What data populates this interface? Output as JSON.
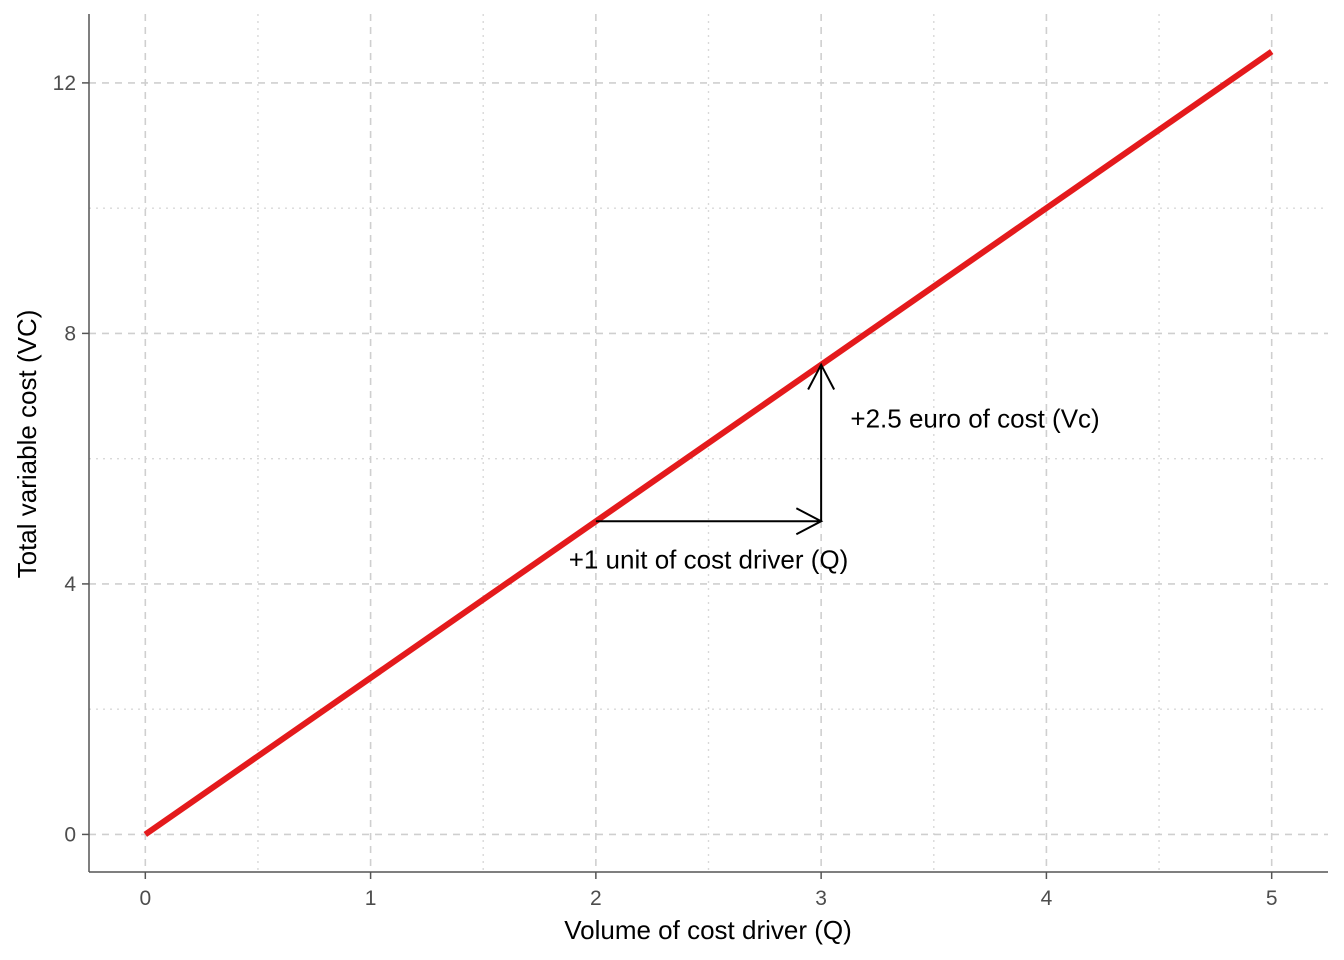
{
  "chart_data": {
    "type": "line",
    "title": "",
    "xlabel": "Volume of cost driver (Q)",
    "ylabel": "Total variable cost (VC)",
    "xlim": [
      -0.25,
      5.25
    ],
    "ylim": [
      -0.6,
      13.1
    ],
    "x_ticks": [
      0,
      1,
      2,
      3,
      4,
      5
    ],
    "y_ticks": [
      0,
      4,
      8,
      12
    ],
    "x_tick_labels": [
      "0",
      "1",
      "2",
      "3",
      "4",
      "5"
    ],
    "y_tick_labels": [
      "0",
      "4",
      "8",
      "12"
    ],
    "x_minor_ticks": [
      0.5,
      1.5,
      2.5,
      3.5,
      4.5
    ],
    "y_minor_ticks": [
      2,
      6,
      10
    ],
    "grid": true,
    "legend": "none",
    "series": [
      {
        "color": "#e41a1c",
        "points": [
          {
            "x": 0,
            "y": 0
          },
          {
            "x": 5,
            "y": 12.5
          }
        ]
      }
    ],
    "annotations": {
      "horizontal_arrow": {
        "from": {
          "x": 2,
          "y": 5
        },
        "to": {
          "x": 3,
          "y": 5
        }
      },
      "vertical_arrow": {
        "from": {
          "x": 3,
          "y": 5
        },
        "to": {
          "x": 3,
          "y": 7.5
        }
      },
      "labels": [
        {
          "text": "+1 unit of cost driver (Q)",
          "x": 2.5,
          "y": 4.25
        },
        {
          "text": "+2.5 euro of cost (Vc)",
          "x": 3.13,
          "y": 6.5
        }
      ]
    }
  }
}
